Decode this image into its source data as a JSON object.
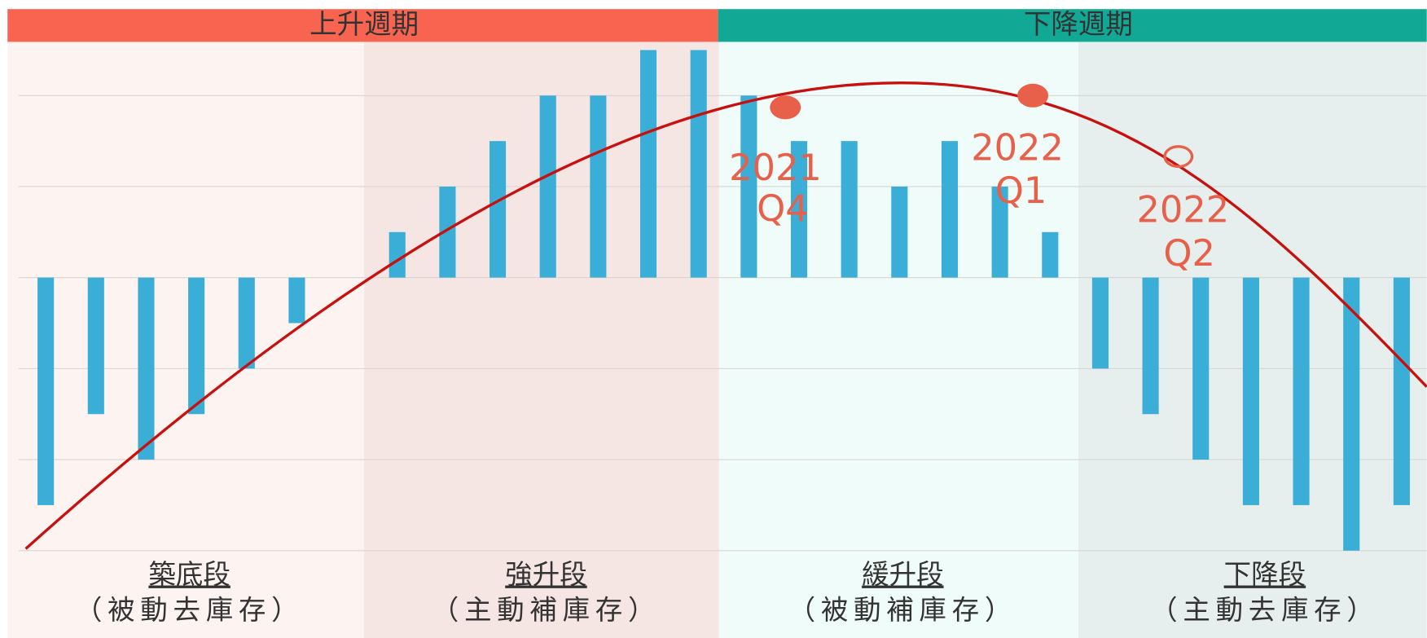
{
  "header": {
    "rising": "上升週期",
    "falling": "下降週期"
  },
  "phases": [
    {
      "name": "築底段",
      "note": "（被動去庫存）"
    },
    {
      "name": "強升段",
      "note": "（主動補庫存）"
    },
    {
      "name": "緩升段",
      "note": "（被動補庫存）"
    },
    {
      "name": "下降段",
      "note": "（主動去庫存）"
    }
  ],
  "chart_data": {
    "type": "bar",
    "categories": [
      null,
      null,
      null,
      null,
      null,
      null,
      null,
      null,
      null,
      null,
      null,
      null,
      null,
      null,
      null,
      null,
      null,
      null,
      null,
      null,
      null,
      null,
      null,
      null,
      null,
      null,
      null,
      null
    ],
    "values": [
      -2.5,
      -1.5,
      -2,
      -1.5,
      -1,
      -0.5,
      null,
      0.5,
      1,
      1.5,
      2,
      2,
      2.5,
      2.5,
      2,
      1.5,
      1.5,
      1,
      1.5,
      1,
      0.5,
      -1,
      -1.5,
      -2,
      -2.5,
      -2.5,
      -3,
      -2.5
    ],
    "color": "#3aaed6",
    "ylim": [
      -3,
      2.5
    ],
    "yticks": [
      -3,
      -2,
      -1,
      0,
      1,
      2
    ],
    "grid": true,
    "annotations": [
      {
        "year": "2021",
        "quarter": "Q4"
      },
      {
        "year": "2022",
        "quarter": "Q1"
      },
      {
        "year": "2022",
        "quarter": "Q2"
      }
    ]
  }
}
